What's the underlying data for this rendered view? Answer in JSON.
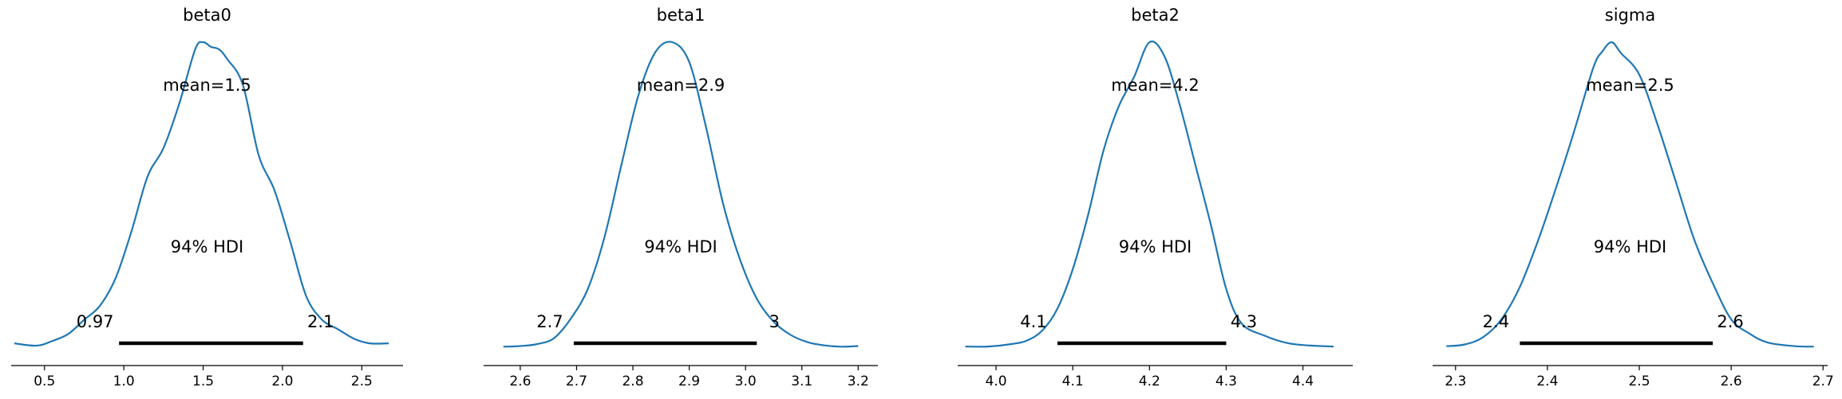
{
  "chart_data": [
    {
      "type": "density",
      "title": "beta0",
      "mean_label": "mean=1.5",
      "hdi_label": "94% HDI",
      "hdi_low_label": "0.97",
      "hdi_high_label": "2.1",
      "hdi": [
        0.97,
        2.13
      ],
      "xlim": [
        0.29,
        2.76
      ],
      "xticks": [
        0.5,
        1.0,
        1.5,
        2.0,
        2.5
      ],
      "xtick_labels": [
        "0.5",
        "1.0",
        "1.5",
        "2.0",
        "2.5"
      ],
      "x": [
        0.31,
        0.45,
        0.55,
        0.65,
        0.75,
        0.85,
        0.95,
        1.05,
        1.15,
        1.25,
        1.35,
        1.45,
        1.5,
        1.55,
        1.6,
        1.65,
        1.75,
        1.85,
        1.95,
        2.05,
        2.15,
        2.25,
        2.35,
        2.45,
        2.55,
        2.67
      ],
      "y": [
        0.02,
        0.01,
        0.03,
        0.06,
        0.12,
        0.18,
        0.3,
        0.5,
        0.73,
        0.85,
        1.04,
        1.27,
        1.3,
        1.28,
        1.27,
        1.23,
        1.12,
        0.82,
        0.67,
        0.45,
        0.22,
        0.12,
        0.08,
        0.04,
        0.02,
        0.02
      ],
      "ymax": 1.3
    },
    {
      "type": "density",
      "title": "beta1",
      "mean_label": "mean=2.9",
      "hdi_label": "94% HDI",
      "hdi_low_label": "2.7",
      "hdi_high_label": "3",
      "hdi": [
        2.695,
        3.02
      ],
      "xlim": [
        2.535,
        3.235
      ],
      "xticks": [
        2.6,
        2.7,
        2.8,
        2.9,
        3.0,
        3.1,
        3.2
      ],
      "xtick_labels": [
        "2.6",
        "2.7",
        "2.8",
        "2.9",
        "3.0",
        "3.1",
        "3.2"
      ],
      "x": [
        2.57,
        2.6,
        2.63,
        2.66,
        2.69,
        2.72,
        2.75,
        2.78,
        2.81,
        2.84,
        2.87,
        2.9,
        2.93,
        2.96,
        2.99,
        3.02,
        3.05,
        3.08,
        3.11,
        3.14,
        3.17,
        3.2
      ],
      "y": [
        0.02,
        0.03,
        0.06,
        0.15,
        0.45,
        0.9,
        1.7,
        2.8,
        3.85,
        4.5,
        4.65,
        4.35,
        3.35,
        2.2,
        1.35,
        0.75,
        0.4,
        0.2,
        0.09,
        0.04,
        0.02,
        0.03
      ],
      "ymax": 4.65
    },
    {
      "type": "density",
      "title": "beta2",
      "mean_label": "mean=4.2",
      "hdi_label": "94% HDI",
      "hdi_low_label": "4.1",
      "hdi_high_label": "4.3",
      "hdi": [
        4.08,
        4.3
      ],
      "xlim": [
        3.95,
        4.465
      ],
      "xticks": [
        4.0,
        4.1,
        4.2,
        4.3,
        4.4
      ],
      "xtick_labels": [
        "4.0",
        "4.1",
        "4.2",
        "4.3",
        "4.4"
      ],
      "x": [
        3.96,
        3.99,
        4.02,
        4.04,
        4.06,
        4.08,
        4.1,
        4.12,
        4.14,
        4.16,
        4.18,
        4.2,
        4.22,
        4.24,
        4.26,
        4.28,
        4.3,
        4.32,
        4.35,
        4.38,
        4.41,
        4.44
      ],
      "y": [
        0.03,
        0.03,
        0.08,
        0.15,
        0.35,
        0.8,
        1.6,
        2.7,
        4.0,
        4.9,
        5.5,
        6.2,
        5.9,
        4.9,
        3.7,
        2.5,
        1.2,
        0.5,
        0.25,
        0.1,
        0.05,
        0.03
      ],
      "ymax": 6.2
    },
    {
      "type": "density",
      "title": "sigma",
      "mean_label": "mean=2.5",
      "hdi_label": "94% HDI",
      "hdi_low_label": "2.4",
      "hdi_high_label": "2.6",
      "hdi": [
        2.37,
        2.58
      ],
      "xlim": [
        2.275,
        2.705
      ],
      "xticks": [
        2.3,
        2.4,
        2.5,
        2.6,
        2.7
      ],
      "xtick_labels": [
        "2.3",
        "2.4",
        "2.5",
        "2.6",
        "2.7"
      ],
      "x": [
        2.29,
        2.31,
        2.33,
        2.35,
        2.37,
        2.39,
        2.41,
        2.43,
        2.45,
        2.46,
        2.47,
        2.48,
        2.5,
        2.52,
        2.54,
        2.56,
        2.58,
        2.6,
        2.62,
        2.64,
        2.67,
        2.69
      ],
      "y": [
        0.05,
        0.1,
        0.3,
        0.8,
        1.7,
        3.0,
        4.5,
        6.1,
        7.8,
        8.25,
        8.5,
        8.2,
        7.6,
        6.2,
        4.6,
        3.0,
        1.8,
        0.8,
        0.4,
        0.15,
        0.05,
        0.04
      ],
      "ymax": 8.5
    }
  ],
  "colors": {
    "curve": "#1f77b4",
    "hdi_bar": "#000000",
    "axis": "#000000",
    "text": "#000000"
  }
}
